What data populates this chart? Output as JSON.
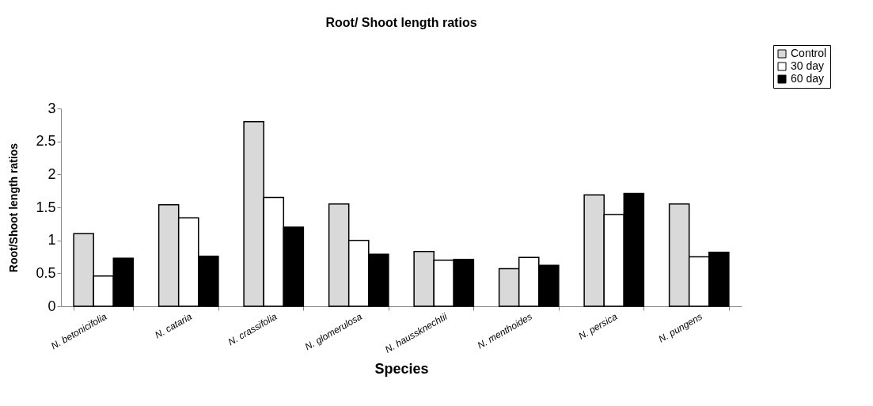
{
  "chart_data": {
    "type": "bar",
    "title": "Root/ Shoot length ratios",
    "xlabel": "Species",
    "ylabel": "Root/Shoot length ratios",
    "categories": [
      "N. betonicifolia",
      "N. cataria",
      "N. crassifolia",
      "N. glomerulosa",
      "N. haussknechtii",
      "N. menthoides",
      "N. persica",
      "N. pungens"
    ],
    "series": [
      {
        "name": "Control",
        "color": "#d9d9d9",
        "values": [
          1.1,
          1.54,
          2.8,
          1.55,
          0.83,
          0.57,
          1.69,
          1.55
        ]
      },
      {
        "name": "30 day",
        "color": "#ffffff",
        "values": [
          0.46,
          1.34,
          1.65,
          1.0,
          0.7,
          0.74,
          1.39,
          0.75
        ]
      },
      {
        "name": "60 day",
        "color": "#000000",
        "values": [
          0.73,
          0.76,
          1.2,
          0.79,
          0.71,
          0.62,
          1.71,
          0.82
        ]
      }
    ],
    "ylim": [
      0,
      3
    ],
    "yticks": [
      0,
      0.5,
      1,
      1.5,
      2,
      2.5,
      3
    ],
    "grid": false,
    "legend": "top right"
  }
}
